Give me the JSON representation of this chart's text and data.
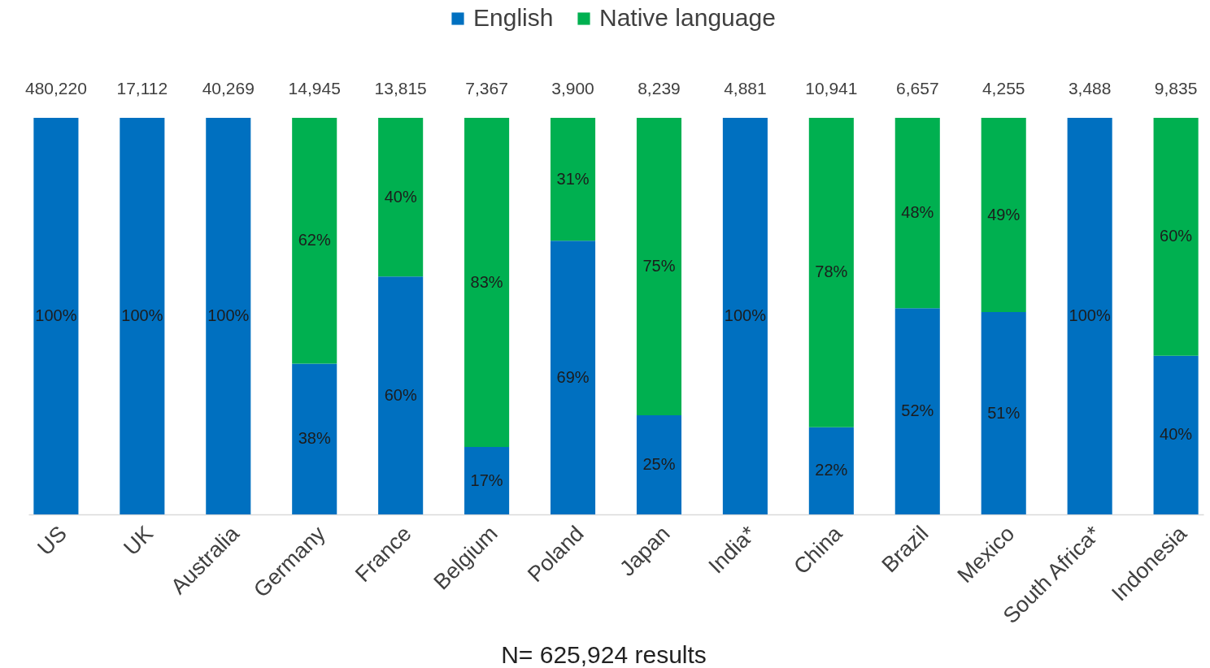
{
  "chart_data": {
    "type": "bar",
    "stacked": true,
    "legend": "top",
    "tick_labels": "x",
    "ylim": [
      0,
      100
    ],
    "categories": [
      "US",
      "UK",
      "Australia",
      "Germany",
      "France",
      "Belgium",
      "Poland",
      "Japan",
      "India*",
      "China",
      "Brazil",
      "Mexico",
      "South Africa*",
      "Indonesia"
    ],
    "series": [
      {
        "name": "English",
        "color": "#0070c0",
        "values": [
          100,
          100,
          100,
          38,
          60,
          17,
          69,
          25,
          100,
          22,
          52,
          51,
          100,
          40
        ],
        "value_labels": [
          "100%",
          "100%",
          "100%",
          "38%",
          "60%",
          "17%",
          "69%",
          "25%",
          "100%",
          "22%",
          "52%",
          "51%",
          "100%",
          "40%"
        ]
      },
      {
        "name": "Native language",
        "color": "#00b050",
        "values": [
          null,
          null,
          null,
          62,
          40,
          83,
          31,
          75,
          null,
          78,
          48,
          49,
          null,
          60
        ],
        "value_labels": [
          null,
          null,
          null,
          "62%",
          "40%",
          "83%",
          "31%",
          "75%",
          null,
          "78%",
          "48%",
          "49%",
          null,
          "60%"
        ]
      }
    ],
    "annotations": [
      {
        "text": "480,220",
        "x": "US",
        "y": 100
      },
      {
        "text": "17,112",
        "x": "UK",
        "y": 100
      },
      {
        "text": "40,269",
        "x": "Australia",
        "y": 100
      },
      {
        "text": "14,945",
        "x": "Germany",
        "y": 100
      },
      {
        "text": "13,815",
        "x": "France",
        "y": 100
      },
      {
        "text": "7,367",
        "x": "Belgium",
        "y": 100
      },
      {
        "text": "3,900",
        "x": "Poland",
        "y": 100
      },
      {
        "text": "8,239",
        "x": "Japan",
        "y": 100
      },
      {
        "text": "4,881",
        "x": "India*",
        "y": 100
      },
      {
        "text": "10,941",
        "x": "China",
        "y": 100
      },
      {
        "text": "6,657",
        "x": "Brazil",
        "y": 100
      },
      {
        "text": "4,255",
        "x": "Mexico",
        "y": 100
      },
      {
        "text": "3,488",
        "x": "South Africa*",
        "y": 100
      },
      {
        "text": "9,835",
        "x": "Indonesia",
        "y": 100
      },
      "N= 625,924 results"
    ]
  }
}
